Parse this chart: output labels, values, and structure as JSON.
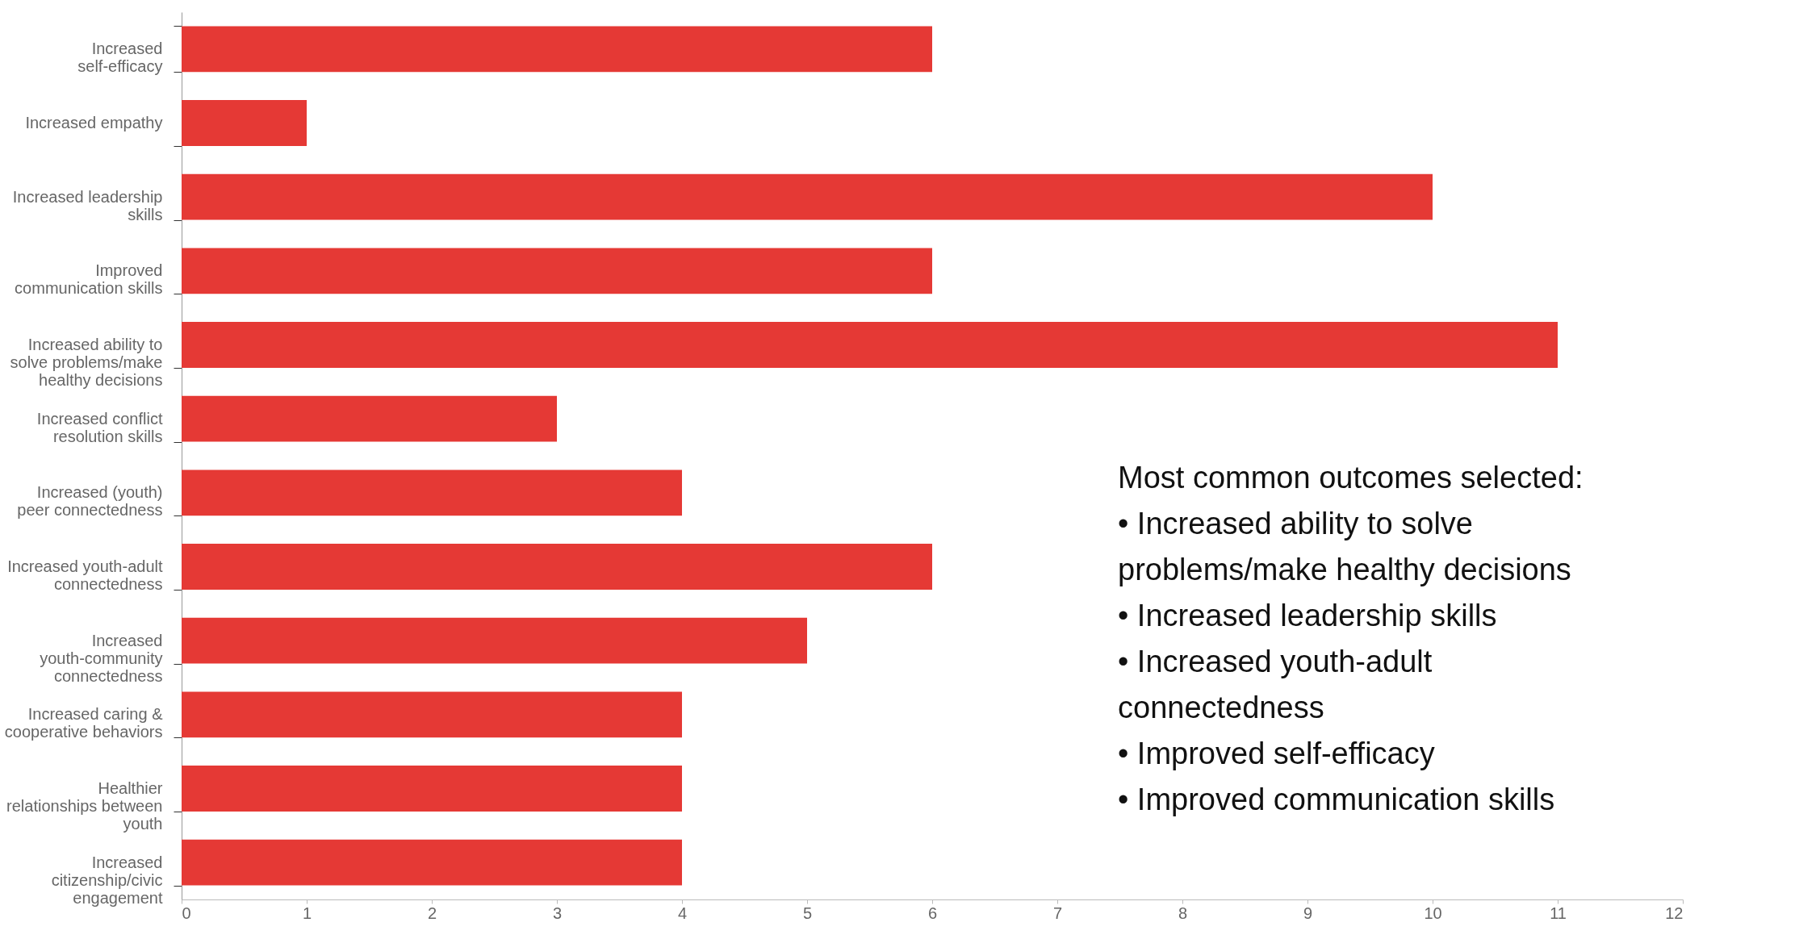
{
  "chart_data": {
    "type": "bar",
    "orientation": "horizontal",
    "categories": [
      "Increased self-efficacy",
      "Increased empathy",
      "Increased leadership skills",
      "Improved communication skills",
      "Increased ability to solve problems/make healthy decisions",
      "Increased conflict resolution skills",
      "Increased (youth) peer connectedness",
      "Increased youth-adult connectedness",
      "Increased youth-community connectedness",
      "Increased caring & cooperative behaviors",
      "Healthier relationships between youth",
      "Increased citizenship/civic engagement"
    ],
    "values": [
      6,
      1,
      10,
      6,
      11,
      3,
      4,
      6,
      5,
      4,
      4,
      4
    ],
    "color": "#e53935",
    "xlim": [
      0,
      12
    ],
    "xticks": [
      0,
      1,
      2,
      3,
      4,
      5,
      6,
      7,
      8,
      9,
      10,
      11,
      12
    ],
    "grid": false,
    "annotations": [
      "Most common outcomes selected:",
      "• Increased ability to solve problems/make healthy decisions",
      "• Increased leadership skills",
      "• Increased youth-adult connectedness",
      "• Improved self-efficacy",
      "• Improved communication skills"
    ]
  }
}
